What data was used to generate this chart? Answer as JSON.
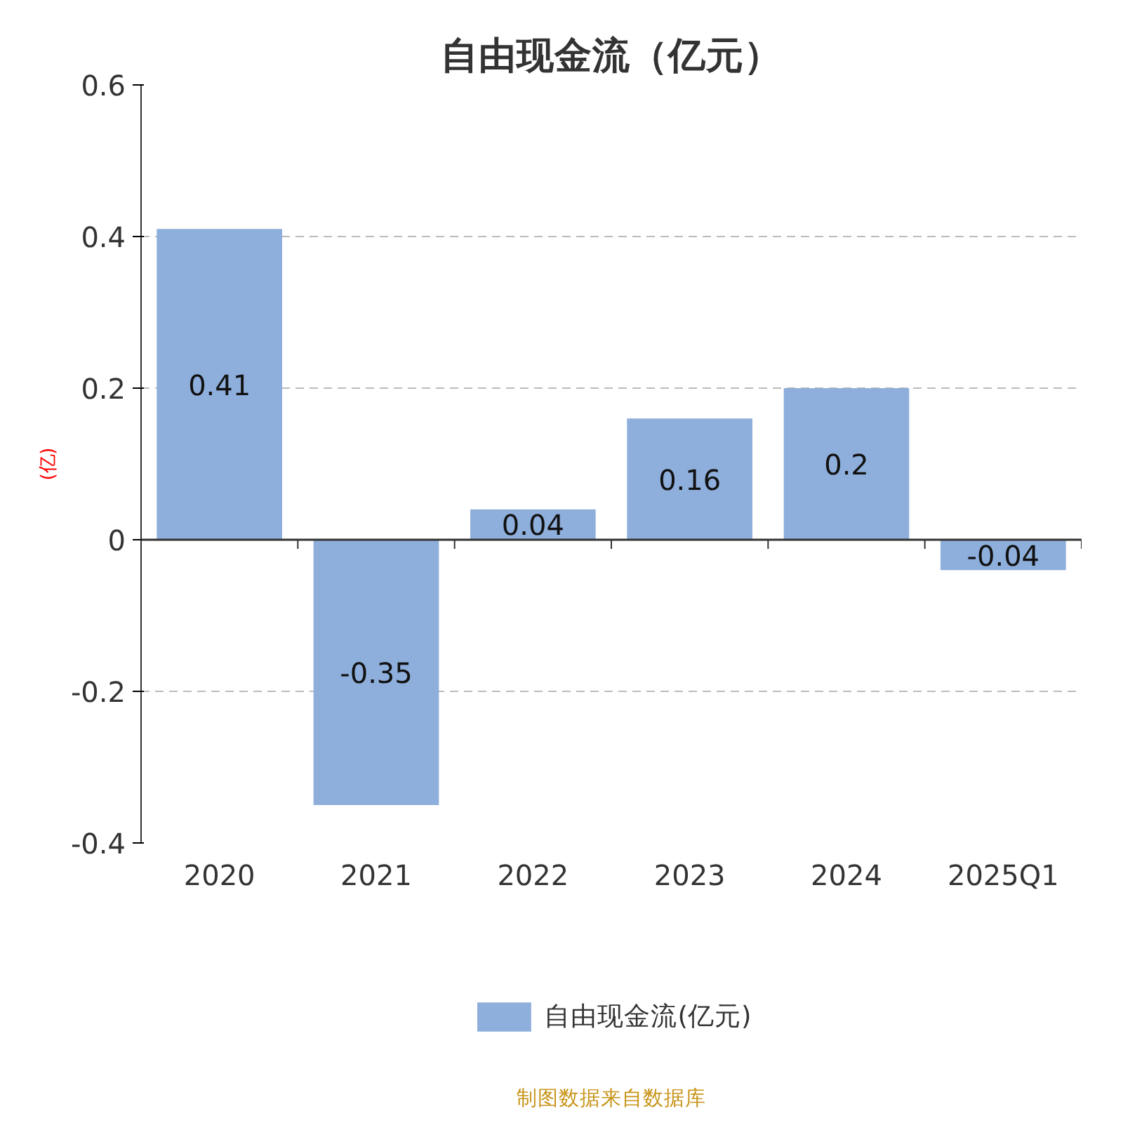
{
  "chart_data": {
    "type": "bar",
    "title": "自由现金流（亿元）",
    "ylabel": "(亿)",
    "categories": [
      "2020",
      "2021",
      "2022",
      "2023",
      "2024",
      "2025Q1"
    ],
    "series": [
      {
        "name": "自由现金流(亿元)",
        "color": "#8eaedb",
        "values": [
          0.41,
          -0.35,
          0.04,
          0.16,
          0.2,
          -0.04
        ]
      }
    ],
    "ylim": [
      -0.4,
      0.6
    ],
    "yticks": [
      -0.4,
      -0.2,
      0,
      0.2,
      0.4,
      0.6
    ],
    "grid": "y",
    "legend": "bottom",
    "data_labels": true,
    "annotations": [
      "制图数据来自数据库"
    ]
  }
}
